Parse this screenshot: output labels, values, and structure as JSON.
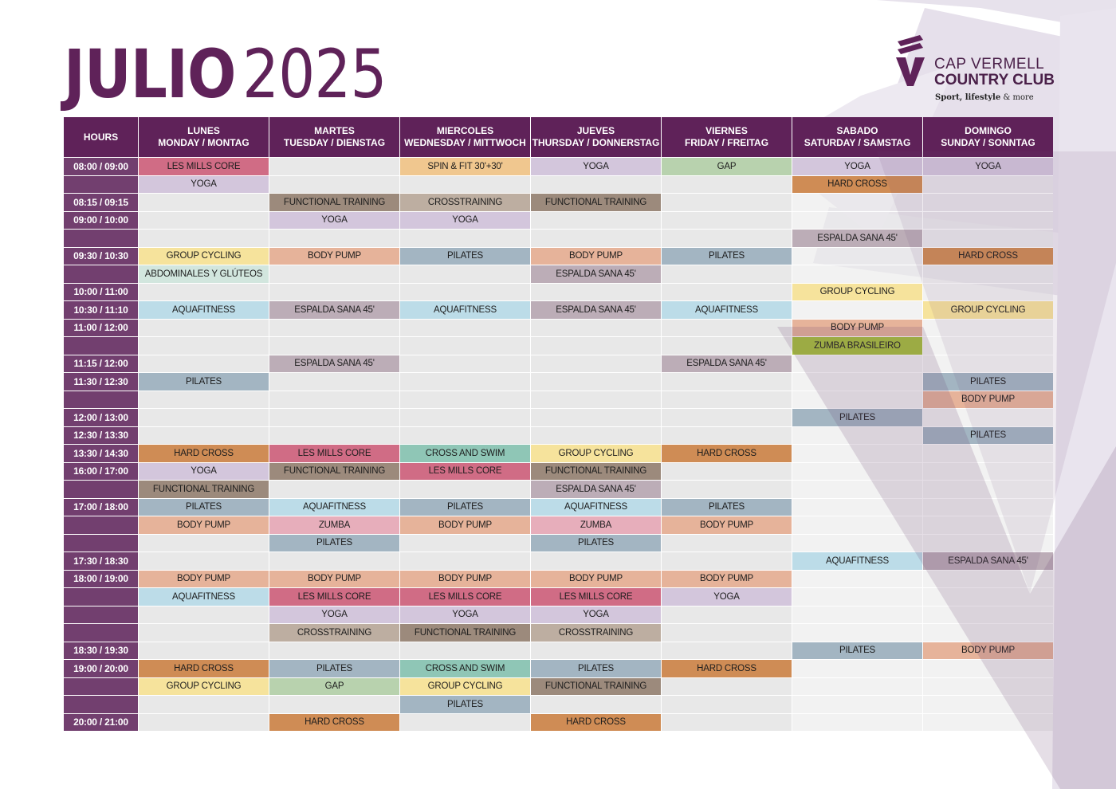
{
  "title": {
    "month": "JULIO",
    "year": "2025"
  },
  "logo": {
    "line1": "CAP VERMELL",
    "line2": "COUNTRY CLUB",
    "tag_bold": "Sport, lifestyle",
    "tag_rest": " & more"
  },
  "colors": {
    "brand": "#5f2259",
    "LES MILLS CORE": "#d06c85",
    "YOGA": "#d3c6dc",
    "SPIN & FIT 30'+30'": "#f0c78f",
    "GAP": "#b8d2ae",
    "HARD CROSS": "#cf8c55",
    "FUNCTIONAL TRAINING": "#9c8a7c",
    "CROSSTRAINING": "#bdaea1",
    "ESPALDA SANA 45'": "#bcadb7",
    "GROUP CYCLING": "#f6e39c",
    "BODY PUMP": "#e6b39a",
    "PILATES": "#a3b5c2",
    "ABDOMINALES Y GLÚTEOS": "#d2e6de",
    "AQUAFITNESS": "#bcdce8",
    "ZUMBA BRASILEIRO": "#a6c13a",
    "CROSS AND SWIM": "#8fc6b6",
    "ZUMBA": "#e7aebb"
  },
  "header": {
    "hours": "HOURS",
    "days": [
      {
        "l1": "LUNES",
        "l2": "MONDAY / MONTAG"
      },
      {
        "l1": "MARTES",
        "l2": "TUESDAY / DIENSTAG"
      },
      {
        "l1": "MIERCOLES",
        "l2": "WEDNESDAY / MITTWOCH"
      },
      {
        "l1": "JUEVES",
        "l2": "THURSDAY / DONNERSTAG"
      },
      {
        "l1": "VIERNES",
        "l2": "FRIDAY / FREITAG"
      },
      {
        "l1": "SABADO",
        "l2": "SATURDAY / SAMSTAG"
      },
      {
        "l1": "DOMINGO",
        "l2": "SUNDAY / SONNTAG"
      }
    ]
  },
  "rows": [
    {
      "hour": "08:00 / 09:00",
      "c": [
        "LES MILLS CORE",
        "",
        "SPIN & FIT 30'+30'",
        "YOGA",
        "GAP",
        "YOGA",
        "YOGA"
      ]
    },
    {
      "hour": "",
      "c": [
        "YOGA",
        "",
        "",
        "",
        "",
        "HARD CROSS",
        ""
      ]
    },
    {
      "hour": "08:15 / 09:15",
      "c": [
        "",
        "FUNCTIONAL TRAINING",
        "CROSSTRAINING",
        "FUNCTIONAL TRAINING",
        "",
        "",
        ""
      ]
    },
    {
      "hour": "09:00 / 10:00",
      "c": [
        "",
        "YOGA",
        "YOGA",
        "",
        "",
        "",
        ""
      ]
    },
    {
      "hour": "",
      "c": [
        "",
        "",
        "",
        "",
        "",
        "ESPALDA SANA 45'",
        ""
      ]
    },
    {
      "hour": "09:30 / 10:30",
      "c": [
        "GROUP CYCLING",
        "BODY PUMP",
        "PILATES",
        "BODY PUMP",
        "PILATES",
        "",
        "HARD CROSS"
      ]
    },
    {
      "hour": "",
      "c": [
        "ABDOMINALES Y GLÚTEOS",
        "",
        "",
        "ESPALDA SANA 45'",
        "",
        "",
        ""
      ]
    },
    {
      "hour": "10:00 / 11:00",
      "c": [
        "",
        "",
        "",
        "",
        "",
        "GROUP CYCLING",
        ""
      ]
    },
    {
      "hour": "10:30 / 11:10",
      "c": [
        "AQUAFITNESS",
        "ESPALDA SANA 45'",
        "AQUAFITNESS",
        "ESPALDA SANA 45'",
        "AQUAFITNESS",
        "",
        "GROUP CYCLING"
      ]
    },
    {
      "hour": "11:00 / 12:00",
      "c": [
        "",
        "",
        "",
        "",
        "",
        "BODY PUMP",
        ""
      ]
    },
    {
      "hour": "",
      "c": [
        "",
        "",
        "",
        "",
        "",
        "ZUMBA BRASILEIRO",
        ""
      ]
    },
    {
      "hour": "11:15 / 12:00",
      "c": [
        "",
        "ESPALDA SANA 45'",
        "",
        "",
        "ESPALDA SANA 45'",
        "",
        ""
      ]
    },
    {
      "hour": "11:30 / 12:30",
      "c": [
        "PILATES",
        "",
        "",
        "",
        "",
        "",
        "PILATES"
      ]
    },
    {
      "hour": "",
      "c": [
        "",
        "",
        "",
        "",
        "",
        "",
        "BODY PUMP"
      ]
    },
    {
      "hour": "12:00 / 13:00",
      "c": [
        "",
        "",
        "",
        "",
        "",
        "PILATES",
        ""
      ]
    },
    {
      "hour": "12:30 / 13:30",
      "c": [
        "",
        "",
        "",
        "",
        "",
        "",
        "PILATES"
      ]
    },
    {
      "hour": "13:30 / 14:30",
      "c": [
        "HARD CROSS",
        "LES MILLS CORE",
        "CROSS AND SWIM",
        "GROUP CYCLING",
        "HARD CROSS",
        "",
        ""
      ]
    },
    {
      "hour": "16:00 / 17:00",
      "c": [
        "YOGA",
        "FUNCTIONAL TRAINING",
        "LES MILLS CORE",
        "FUNCTIONAL TRAINING",
        "",
        "",
        ""
      ]
    },
    {
      "hour": "",
      "c": [
        "FUNCTIONAL TRAINING",
        "",
        "",
        "ESPALDA SANA 45'",
        "",
        "",
        ""
      ]
    },
    {
      "hour": "17:00 / 18:00",
      "c": [
        "PILATES",
        "AQUAFITNESS",
        "PILATES",
        "AQUAFITNESS",
        "PILATES",
        "",
        ""
      ]
    },
    {
      "hour": "",
      "c": [
        "BODY PUMP",
        "ZUMBA",
        "BODY PUMP",
        "ZUMBA",
        "BODY PUMP",
        "",
        ""
      ]
    },
    {
      "hour": "",
      "c": [
        "",
        "PILATES",
        "",
        "PILATES",
        "",
        "",
        ""
      ]
    },
    {
      "hour": "17:30 / 18:30",
      "c": [
        "",
        "",
        "",
        "",
        "",
        "AQUAFITNESS",
        "ESPALDA SANA 45'"
      ]
    },
    {
      "hour": "18:00 / 19:00",
      "c": [
        "BODY PUMP",
        "BODY PUMP",
        "BODY PUMP",
        "BODY PUMP",
        "BODY PUMP",
        "",
        ""
      ]
    },
    {
      "hour": "",
      "c": [
        "AQUAFITNESS",
        "LES MILLS CORE",
        "LES MILLS CORE",
        "LES MILLS CORE",
        "YOGA",
        "",
        ""
      ]
    },
    {
      "hour": "",
      "c": [
        "",
        "YOGA",
        "YOGA",
        "YOGA",
        "",
        "",
        ""
      ]
    },
    {
      "hour": "",
      "c": [
        "",
        "CROSSTRAINING",
        "FUNCTIONAL TRAINING",
        "CROSSTRAINING",
        "",
        "",
        ""
      ]
    },
    {
      "hour": "18:30 / 19:30",
      "c": [
        "",
        "",
        "",
        "",
        "",
        "PILATES",
        "BODY PUMP"
      ]
    },
    {
      "hour": "19:00 / 20:00",
      "c": [
        "HARD CROSS",
        "PILATES",
        "CROSS AND SWIM",
        "PILATES",
        "HARD CROSS",
        "",
        ""
      ]
    },
    {
      "hour": "",
      "c": [
        "GROUP CYCLING",
        "GAP",
        "GROUP CYCLING",
        "FUNCTIONAL TRAINING",
        "",
        "",
        ""
      ]
    },
    {
      "hour": "",
      "c": [
        "",
        "",
        "PILATES",
        "",
        "",
        "",
        ""
      ]
    },
    {
      "hour": "20:00 / 21:00",
      "c": [
        "",
        "HARD CROSS",
        "",
        "HARD CROSS",
        "",
        "",
        ""
      ]
    }
  ]
}
